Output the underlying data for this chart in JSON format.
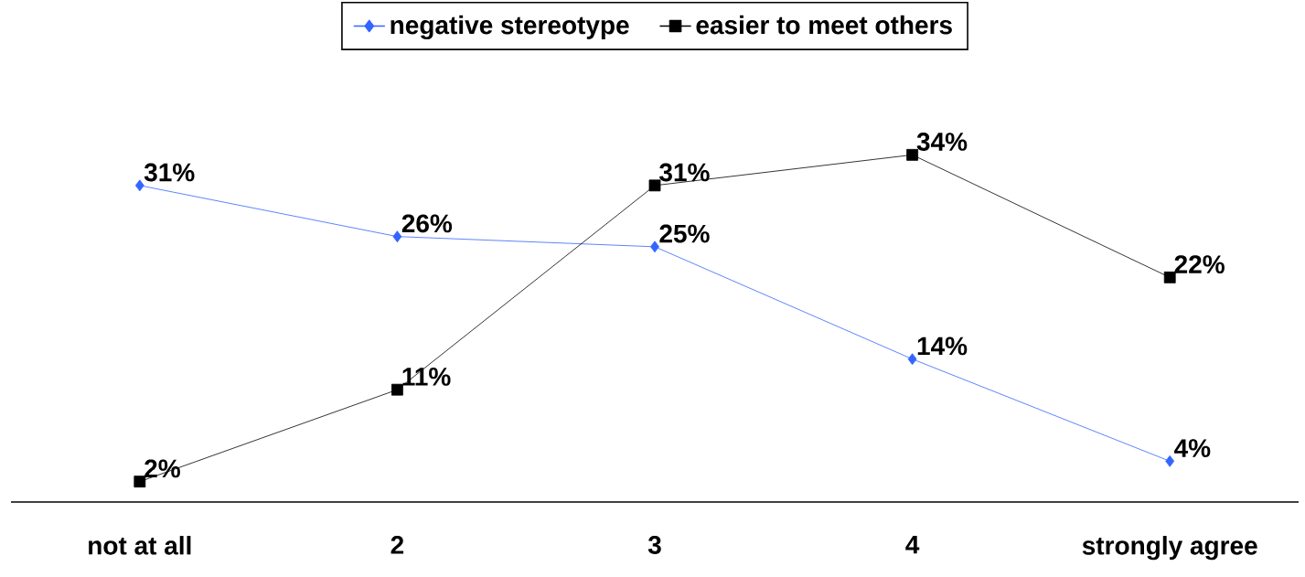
{
  "chart_data": {
    "type": "line",
    "categories": [
      "not at all",
      "2",
      "3",
      "4",
      "strongly agree"
    ],
    "series": [
      {
        "name": "negative stereotype",
        "color": "#3366ff",
        "marker": "diamond",
        "values": [
          31,
          26,
          25,
          14,
          4
        ],
        "value_labels": [
          "31%",
          "26%",
          "25%",
          "14%",
          "4%"
        ]
      },
      {
        "name": "easier to meet others",
        "color": "#000000",
        "marker": "square",
        "values": [
          2,
          11,
          31,
          34,
          22
        ],
        "value_labels": [
          "2%",
          "11%",
          "31%",
          "34%",
          "22%"
        ]
      }
    ],
    "legend": "top",
    "grid": false
  }
}
